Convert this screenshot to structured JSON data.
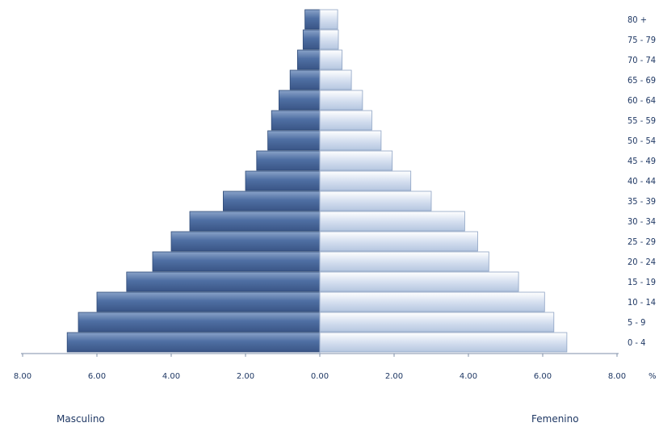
{
  "chart_data": {
    "type": "bar",
    "orientation": "horizontal",
    "subtype": "population-pyramid",
    "categories": [
      "0 - 4",
      "5 - 9",
      "10 - 14",
      "15 - 19",
      "20 - 24",
      "25 - 29",
      "30 - 34",
      "35 - 39",
      "40 - 44",
      "45 - 49",
      "50 - 54",
      "55 - 59",
      "60 - 64",
      "65 - 69",
      "70 - 74",
      "75 - 79",
      "80 +"
    ],
    "series": [
      {
        "name": "Masculino",
        "color": "#4f6fa3",
        "values": [
          6.8,
          6.5,
          6.0,
          5.2,
          4.5,
          4.0,
          3.5,
          2.6,
          2.0,
          1.7,
          1.4,
          1.3,
          1.1,
          0.8,
          0.6,
          0.45,
          0.4
        ]
      },
      {
        "name": "Femenino",
        "color": "#d6e0f0",
        "values": [
          6.65,
          6.3,
          6.05,
          5.35,
          4.55,
          4.25,
          3.9,
          3.0,
          2.45,
          1.95,
          1.65,
          1.4,
          1.15,
          0.85,
          0.6,
          0.5,
          0.48
        ]
      }
    ],
    "x_ticks": [
      "8.00",
      "6.00",
      "4.00",
      "2.00",
      "0.00",
      "2.00",
      "4.00",
      "6.00",
      "8.00"
    ],
    "x_unit": "%",
    "xlim": [
      -8,
      8
    ],
    "grid": false,
    "category_labels_position": "right"
  },
  "labels": {
    "male": "Masculino",
    "female": "Femenino",
    "unit": "%"
  }
}
